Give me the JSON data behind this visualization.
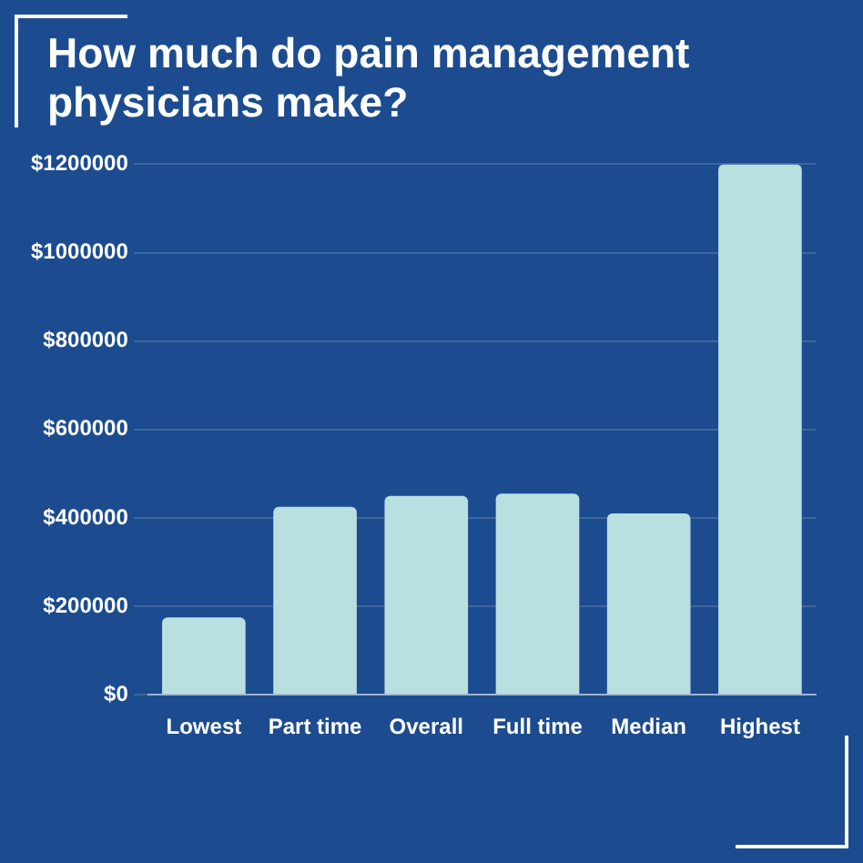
{
  "chart_data": {
    "type": "bar",
    "title": "How much do pain management physicians make?",
    "categories": [
      "Lowest",
      "Part time",
      "Overall",
      "Full time",
      "Median",
      "Highest"
    ],
    "values": [
      175000,
      425000,
      450000,
      455000,
      410000,
      1200000
    ],
    "color": "#b9e0e0",
    "ylim": [
      0,
      1200000
    ],
    "yticks": [
      {
        "value": 0,
        "label": "$0"
      },
      {
        "value": 200000,
        "label": "$200000"
      },
      {
        "value": 400000,
        "label": "$400000"
      },
      {
        "value": 600000,
        "label": "$600000"
      },
      {
        "value": 800000,
        "label": "$800000"
      },
      {
        "value": 1000000,
        "label": "$1000000"
      },
      {
        "value": 1200000,
        "label": "$1200000"
      }
    ],
    "grid": "y"
  }
}
